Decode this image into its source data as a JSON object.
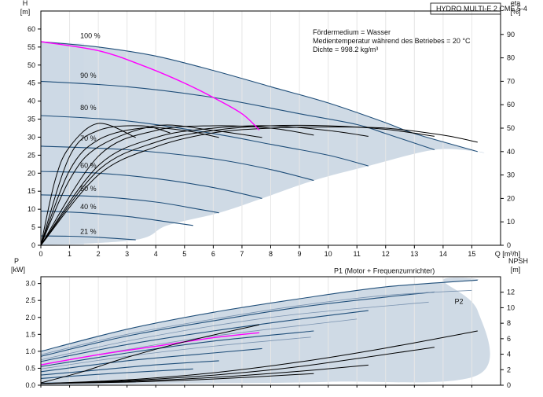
{
  "header": {
    "title": "HYDRO MULTI-E 2 CME 5-4",
    "medium": "Fördermedium = Wasser",
    "temperature": "Medientemperatur während des Betriebes = 20 °C",
    "density": "Dichte = 998.2 kg/m³"
  },
  "colors": {
    "envelope_fill": "#cad6e2",
    "light_zone": "#e9f1f9",
    "speed_curve": "#1f4e79",
    "efficiency_curve": "#000000",
    "duty_curve": "#ff00ff",
    "p2_curve": "#7a93b0"
  },
  "chart_data": [
    {
      "type": "line",
      "title": "",
      "xlabel": "Q [m³/h]",
      "ylabel_left": "H [m]",
      "ylabel_right": "eta [%]",
      "xlim": [
        0,
        16
      ],
      "ylim_left": [
        0,
        65
      ],
      "ylim_right": [
        0,
        100
      ],
      "x_ticks": [
        0,
        1,
        2,
        3,
        4,
        5,
        6,
        7,
        8,
        9,
        10,
        11,
        12,
        13,
        14,
        15
      ],
      "y_ticks_left": [
        0,
        5,
        10,
        15,
        20,
        25,
        30,
        35,
        40,
        45,
        50,
        55,
        60
      ],
      "y_ticks_right": [
        0,
        10,
        20,
        30,
        40,
        50,
        60,
        70,
        80,
        90
      ],
      "speed_labels": [
        "100 %",
        "90 %",
        "80 %",
        "70 %",
        "60 %",
        "50 %",
        "40 %",
        "21 %"
      ],
      "speed_curves": [
        {
          "speed": "100 %",
          "points": [
            [
              0,
              56.5
            ],
            [
              2,
              55
            ],
            [
              4,
              52.5
            ],
            [
              6,
              48.5
            ],
            [
              8,
              44
            ],
            [
              10,
              39.5
            ],
            [
              12,
              34
            ],
            [
              13,
              31
            ],
            [
              15.2,
              26
            ]
          ]
        },
        {
          "speed": "90 %",
          "points": [
            [
              0,
              45.5
            ],
            [
              3,
              44
            ],
            [
              6,
              41
            ],
            [
              9,
              36.5
            ],
            [
              11,
              33.5
            ],
            [
              12,
              31
            ],
            [
              13.7,
              26.5
            ]
          ]
        },
        {
          "speed": "80 %",
          "points": [
            [
              0,
              36
            ],
            [
              3,
              34.5
            ],
            [
              6,
              31
            ],
            [
              8,
              28
            ],
            [
              10,
              25
            ],
            [
              11.4,
              22
            ]
          ]
        },
        {
          "speed": "70 %",
          "points": [
            [
              0,
              27.5
            ],
            [
              3,
              26.5
            ],
            [
              6,
              24
            ],
            [
              8,
              21
            ],
            [
              9.5,
              18
            ]
          ]
        },
        {
          "speed": "60 %",
          "points": [
            [
              0,
              20.5
            ],
            [
              2,
              20
            ],
            [
              4,
              18.5
            ],
            [
              6,
              16
            ],
            [
              7.7,
              13
            ]
          ]
        },
        {
          "speed": "50 %",
          "points": [
            [
              0,
              14
            ],
            [
              2,
              13.5
            ],
            [
              4,
              12
            ],
            [
              5.5,
              10
            ],
            [
              6.2,
              9
            ]
          ]
        },
        {
          "speed": "40 %",
          "points": [
            [
              0,
              9.5
            ],
            [
              1.5,
              9
            ],
            [
              3,
              8
            ],
            [
              4.4,
              6.5
            ],
            [
              5.3,
              5.5
            ]
          ]
        },
        {
          "speed": "21 %",
          "points": [
            [
              0,
              2.6
            ],
            [
              1,
              2.5
            ],
            [
              2,
              2.2
            ],
            [
              3.3,
              1.5
            ]
          ]
        }
      ],
      "duty_curve": {
        "points": [
          [
            0,
            56.5
          ],
          [
            2,
            54
          ],
          [
            3.5,
            50
          ],
          [
            5,
            45
          ],
          [
            6,
            41
          ],
          [
            7,
            36.5
          ],
          [
            7.6,
            32
          ]
        ]
      },
      "efficiency_curves": [
        {
          "points": [
            [
              0,
              0
            ],
            [
              2,
              30
            ],
            [
              4,
              42
            ],
            [
              6,
              48
            ],
            [
              8,
              50
            ],
            [
              10,
              50.5
            ],
            [
              12,
              50
            ],
            [
              14,
              47
            ],
            [
              15.2,
              44
            ]
          ]
        },
        {
          "points": [
            [
              0,
              0
            ],
            [
              2,
              32
            ],
            [
              4,
              44
            ],
            [
              6,
              49
            ],
            [
              8,
              51
            ],
            [
              10,
              51
            ],
            [
              12,
              49.5
            ],
            [
              13.7,
              46.5
            ]
          ]
        },
        {
          "points": [
            [
              0,
              0
            ],
            [
              2,
              34
            ],
            [
              4,
              46
            ],
            [
              6,
              50
            ],
            [
              8,
              51
            ],
            [
              10,
              49
            ],
            [
              11.4,
              46.5
            ]
          ]
        },
        {
          "points": [
            [
              0,
              0
            ],
            [
              2,
              38
            ],
            [
              4,
              49
            ],
            [
              6,
              51
            ],
            [
              8,
              50
            ],
            [
              9.5,
              47
            ]
          ]
        },
        {
          "points": [
            [
              0,
              0
            ],
            [
              1,
              28
            ],
            [
              2,
              42
            ],
            [
              4,
              51
            ],
            [
              6,
              49
            ],
            [
              7.7,
              46
            ]
          ]
        },
        {
          "points": [
            [
              0,
              0
            ],
            [
              1,
              32
            ],
            [
              2,
              45
            ],
            [
              3.5,
              50
            ],
            [
              5,
              49
            ],
            [
              6.2,
              46
            ]
          ]
        },
        {
          "points": [
            [
              0,
              0
            ],
            [
              1,
              38
            ],
            [
              2,
              49
            ],
            [
              3.5,
              51
            ],
            [
              4.5,
              48
            ]
          ]
        },
        {
          "points": [
            [
              0,
              0
            ],
            [
              0.5,
              28
            ],
            [
              1,
              42
            ],
            [
              2,
              52
            ],
            [
              3.3,
              46
            ]
          ]
        }
      ]
    },
    {
      "type": "line",
      "title": "",
      "xlabel": "",
      "ylabel_left": "P [kW]",
      "ylabel_right": "NPSH [m]",
      "xlim": [
        0,
        16
      ],
      "ylim_left": [
        0,
        3.2
      ],
      "ylim_right": [
        0,
        14
      ],
      "y_ticks_left": [
        0,
        0.5,
        1.0,
        1.5,
        2.0,
        2.5,
        3.0
      ],
      "y_ticks_right": [
        0,
        2,
        4,
        6,
        8,
        10,
        12
      ],
      "series_labels": [
        "P1 (Motor + Frequenzumrichter)",
        "P2"
      ],
      "p1_curves": [
        {
          "points": [
            [
              0,
              1.0
            ],
            [
              3,
              1.65
            ],
            [
              6,
              2.15
            ],
            [
              9,
              2.55
            ],
            [
              12,
              2.9
            ],
            [
              15.2,
              3.1
            ]
          ]
        },
        {
          "points": [
            [
              0,
              0.85
            ],
            [
              3,
              1.45
            ],
            [
              6,
              1.9
            ],
            [
              9,
              2.3
            ],
            [
              12,
              2.6
            ],
            [
              13.7,
              2.75
            ]
          ]
        },
        {
          "points": [
            [
              0,
              0.7
            ],
            [
              3,
              1.2
            ],
            [
              6,
              1.6
            ],
            [
              9,
              1.95
            ],
            [
              11.4,
              2.2
            ]
          ]
        },
        {
          "points": [
            [
              0,
              0.55
            ],
            [
              3,
              0.95
            ],
            [
              6,
              1.3
            ],
            [
              9.5,
              1.6
            ]
          ]
        },
        {
          "points": [
            [
              0,
              0.4
            ],
            [
              3,
              0.72
            ],
            [
              6,
              0.95
            ],
            [
              7.7,
              1.08
            ]
          ]
        },
        {
          "points": [
            [
              0,
              0.3
            ],
            [
              2,
              0.45
            ],
            [
              4,
              0.6
            ],
            [
              6.2,
              0.72
            ]
          ]
        },
        {
          "points": [
            [
              0,
              0.2
            ],
            [
              2,
              0.32
            ],
            [
              4,
              0.42
            ],
            [
              5.3,
              0.48
            ]
          ]
        },
        {
          "points": [
            [
              0,
              0.06
            ],
            [
              1.5,
              0.08
            ],
            [
              3.3,
              0.1
            ]
          ]
        }
      ],
      "p2_curves": [
        {
          "points": [
            [
              0,
              0.9
            ],
            [
              3,
              1.5
            ],
            [
              6,
              1.95
            ],
            [
              9,
              2.35
            ],
            [
              12,
              2.65
            ],
            [
              15,
              2.8
            ]
          ]
        },
        {
          "points": [
            [
              0,
              0.75
            ],
            [
              3,
              1.3
            ],
            [
              6,
              1.75
            ],
            [
              9,
              2.1
            ],
            [
              13.5,
              2.45
            ]
          ]
        },
        {
          "points": [
            [
              0,
              0.6
            ],
            [
              3,
              1.05
            ],
            [
              6,
              1.45
            ],
            [
              11,
              1.95
            ]
          ]
        },
        {
          "points": [
            [
              0,
              0.48
            ],
            [
              3,
              0.85
            ],
            [
              6,
              1.15
            ],
            [
              9.4,
              1.42
            ]
          ]
        }
      ],
      "duty_curve": {
        "points": [
          [
            0,
            0.6
          ],
          [
            2,
            0.9
          ],
          [
            4,
            1.15
          ],
          [
            6,
            1.4
          ],
          [
            7.6,
            1.55
          ]
        ]
      },
      "npsh_curves": [
        {
          "points": [
            [
              0,
              0.2
            ],
            [
              3,
              0.7
            ],
            [
              6,
              1.6
            ],
            [
              9,
              3.0
            ],
            [
              12,
              4.8
            ],
            [
              15.2,
              7.0
            ]
          ]
        },
        {
          "points": [
            [
              0,
              0.2
            ],
            [
              3,
              0.6
            ],
            [
              6,
              1.3
            ],
            [
              9,
              2.4
            ],
            [
              13.7,
              4.9
            ]
          ]
        },
        {
          "points": [
            [
              0,
              0.2
            ],
            [
              3,
              0.5
            ],
            [
              6,
              1.0
            ],
            [
              9,
              1.8
            ],
            [
              11.4,
              2.6
            ]
          ]
        },
        {
          "points": [
            [
              0,
              0.2
            ],
            [
              3,
              0.4
            ],
            [
              6,
              0.8
            ],
            [
              9.5,
              1.5
            ]
          ]
        },
        {
          "points": [
            [
              0,
              0.3
            ],
            [
              1.5,
              1.8
            ],
            [
              3,
              3.6
            ],
            [
              5,
              5.6
            ],
            [
              7.6,
              7.8
            ]
          ]
        }
      ]
    }
  ]
}
